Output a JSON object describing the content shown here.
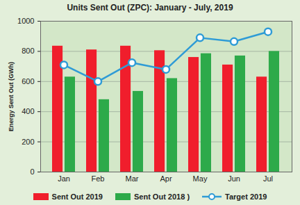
{
  "chart_data": {
    "type": "bar",
    "title": "Units Sent Out (ZPC): January - July, 2019",
    "y_label": "Energy Sent Out (GWh)",
    "categories": [
      "Jan",
      "Feb",
      "Mar",
      "Apr",
      "May",
      "Jun",
      "Jul"
    ],
    "series": [
      {
        "name": "Sent Out 2019",
        "type": "bar",
        "color": "#f01e2c",
        "values": [
          835,
          810,
          835,
          805,
          760,
          710,
          630
        ]
      },
      {
        "name": "Sent Out 2018 )",
        "type": "bar",
        "color": "#2daa4a",
        "values": [
          630,
          480,
          535,
          620,
          785,
          770,
          800
        ]
      },
      {
        "name": "Target 2019",
        "type": "line",
        "color": "#2e9bd6",
        "marker": "circle",
        "values": [
          710,
          600,
          725,
          680,
          890,
          865,
          930
        ]
      }
    ],
    "ylim": [
      0,
      1000
    ],
    "yticks": [
      0,
      200,
      400,
      600,
      800,
      1000
    ],
    "grid": true,
    "legend": "bottom"
  }
}
